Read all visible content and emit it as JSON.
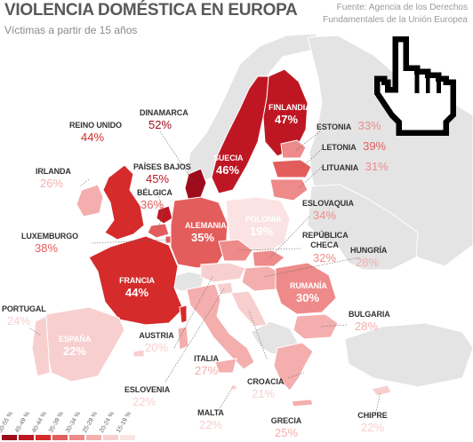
{
  "title": "VIOLENCIA DOMÉSTICA EN EUROPA",
  "subtitle": "Víctimas a partir de 15 años",
  "source_lines": [
    "Fuente: Agencia de los Derechos",
    "Fundamentales de la Unión Europea"
  ],
  "legend": {
    "items": [
      {
        "range": "50-55 %",
        "color": "#9e0b1c"
      },
      {
        "range": "45-49 %",
        "color": "#be1723"
      },
      {
        "range": "40-44 %",
        "color": "#d52b2b"
      },
      {
        "range": "35-39 %",
        "color": "#e35d5d"
      },
      {
        "range": "30-34 %",
        "color": "#ee8a8a"
      },
      {
        "range": "25-29 %",
        "color": "#f4aeae"
      },
      {
        "range": "20-24 %",
        "color": "#f8cfcf"
      },
      {
        "range": "15-19 %",
        "color": "#fbe3e3"
      }
    ]
  },
  "non_member_color": "#e4e4e4",
  "cursor_icon": "pointing-hand-icon",
  "countries": [
    {
      "id": "finlandia",
      "name": "FINLANDIA",
      "value": "47%"
    },
    {
      "id": "estonia",
      "name": "ESTONIA",
      "value": "33%"
    },
    {
      "id": "letonia",
      "name": "LETONIA",
      "value": "39%"
    },
    {
      "id": "lituania",
      "name": "LITUANIA",
      "value": "31%"
    },
    {
      "id": "dinamarca",
      "name": "DINAMARCA",
      "value": "52%"
    },
    {
      "id": "reino-unido",
      "name": "REINO UNIDO",
      "value": "44%"
    },
    {
      "id": "suecia",
      "name": "SUECIA",
      "value": "46%"
    },
    {
      "id": "irlanda",
      "name": "IRLANDA",
      "value": "26%"
    },
    {
      "id": "paises-bajos",
      "name": "PAÍSES BAJOS",
      "value": "45%"
    },
    {
      "id": "belgica",
      "name": "BÉLGICA",
      "value": "36%"
    },
    {
      "id": "polonia",
      "name": "POLONIA",
      "value": "19%"
    },
    {
      "id": "eslovaquia",
      "name": "ESLOVAQUIA",
      "value": "34%"
    },
    {
      "id": "alemania",
      "name": "ALEMANIA",
      "value": "35%"
    },
    {
      "id": "luxemburgo",
      "name": "LUXEMBURGO",
      "value": "38%"
    },
    {
      "id": "republica-checa",
      "name": "REPÚBLICA CHECA",
      "value": "32%"
    },
    {
      "id": "hungria",
      "name": "HUNGRÍA",
      "value": "28%"
    },
    {
      "id": "francia",
      "name": "FRANCIA",
      "value": "44%"
    },
    {
      "id": "rumania",
      "name": "RUMANÍA",
      "value": "30%"
    },
    {
      "id": "portugal",
      "name": "PORTUGAL",
      "value": "24%"
    },
    {
      "id": "bulgaria",
      "name": "BULGARIA",
      "value": "28%"
    },
    {
      "id": "espana",
      "name": "ESPAÑA",
      "value": "22%"
    },
    {
      "id": "austria",
      "name": "AUSTRIA",
      "value": "20%"
    },
    {
      "id": "italia",
      "name": "ITALIA",
      "value": "27%"
    },
    {
      "id": "croacia",
      "name": "CROACIA",
      "value": "21%"
    },
    {
      "id": "eslovenia",
      "name": "ESLOVENIA",
      "value": "22%"
    },
    {
      "id": "malta",
      "name": "MALTA",
      "value": "22%"
    },
    {
      "id": "grecia",
      "name": "GRECIA",
      "value": "25%"
    },
    {
      "id": "chipre",
      "name": "CHIPRE",
      "value": "22%"
    }
  ]
}
